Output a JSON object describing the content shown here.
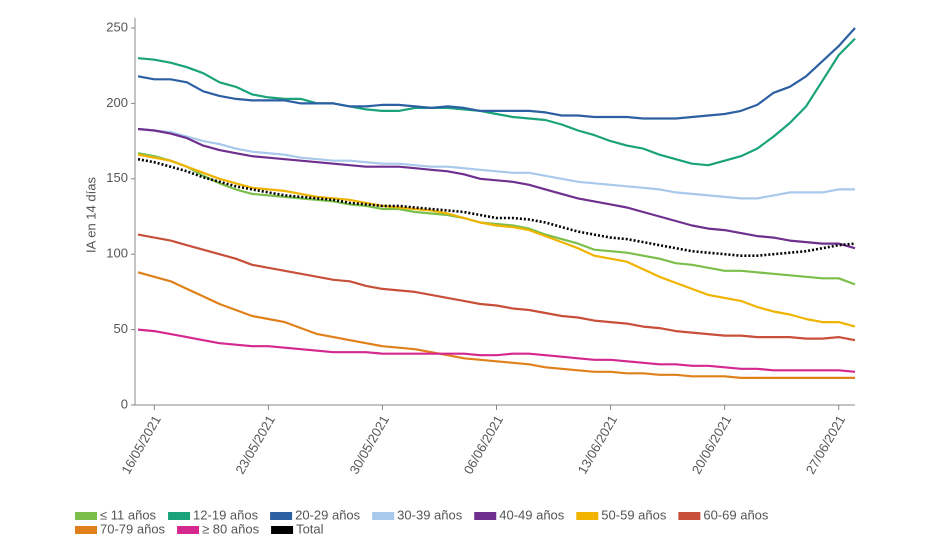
{
  "chart_data": {
    "type": "line",
    "y_label": "IA en 14 días",
    "categories": [
      null,
      "16/05/2021",
      null,
      null,
      null,
      null,
      null,
      null,
      "23/05/2021",
      null,
      null,
      null,
      null,
      null,
      null,
      "30/05/2021",
      null,
      null,
      null,
      null,
      null,
      null,
      "06/06/2021",
      null,
      null,
      null,
      null,
      null,
      null,
      "13/06/2021",
      null,
      null,
      null,
      null,
      null,
      null,
      "20/06/2021",
      null,
      null,
      null,
      null,
      null,
      null,
      "27/06/2021",
      null
    ],
    "ylim": [
      0,
      250
    ],
    "yticks": [
      0,
      50,
      100,
      150,
      200,
      250
    ],
    "grid": false,
    "legend": "bottom",
    "series": [
      {
        "name": "≤ 11 años",
        "color": "#7bbf4a",
        "values": [
          167,
          165,
          162,
          158,
          152,
          147,
          143,
          140,
          139,
          138,
          137,
          136,
          135,
          133,
          132,
          130,
          130,
          128,
          127,
          126,
          124,
          121,
          120,
          119,
          117,
          113,
          110,
          107,
          103,
          102,
          101,
          99,
          97,
          94,
          93,
          91,
          89,
          89,
          88,
          87,
          86,
          85,
          84,
          84,
          80
        ]
      },
      {
        "name": "12-19 años",
        "color": "#1aa37a",
        "values": [
          230,
          229,
          227,
          224,
          220,
          214,
          211,
          206,
          204,
          203,
          203,
          200,
          200,
          198,
          196,
          195,
          195,
          197,
          197,
          197,
          196,
          195,
          193,
          191,
          190,
          189,
          186,
          182,
          179,
          175,
          172,
          170,
          166,
          163,
          160,
          159,
          162,
          165,
          170,
          178,
          187,
          198,
          215,
          232,
          243
        ]
      },
      {
        "name": "20-29 años",
        "color": "#2d5fa3",
        "values": [
          218,
          216,
          216,
          214,
          208,
          205,
          203,
          202,
          202,
          202,
          200,
          200,
          200,
          198,
          198,
          199,
          199,
          198,
          197,
          198,
          197,
          195,
          195,
          195,
          195,
          194,
          192,
          192,
          191,
          191,
          191,
          190,
          190,
          190,
          191,
          192,
          193,
          195,
          199,
          207,
          211,
          218,
          228,
          238,
          250
        ]
      },
      {
        "name": "30-39 años",
        "color": "#a8c8ec",
        "values": [
          183,
          182,
          181,
          178,
          175,
          173,
          170,
          168,
          167,
          166,
          164,
          163,
          162,
          162,
          161,
          160,
          160,
          159,
          158,
          158,
          157,
          156,
          155,
          154,
          154,
          152,
          150,
          148,
          147,
          146,
          145,
          144,
          143,
          141,
          140,
          139,
          138,
          137,
          137,
          139,
          141,
          141,
          141,
          143,
          143
        ]
      },
      {
        "name": "40-49 años",
        "color": "#6e2f8e",
        "values": [
          183,
          182,
          180,
          177,
          172,
          169,
          167,
          165,
          164,
          163,
          162,
          161,
          160,
          159,
          158,
          158,
          158,
          157,
          156,
          155,
          153,
          150,
          149,
          148,
          146,
          143,
          140,
          137,
          135,
          133,
          131,
          128,
          125,
          122,
          119,
          117,
          116,
          114,
          112,
          111,
          109,
          108,
          107,
          107,
          104
        ]
      },
      {
        "name": "50-59 años",
        "color": "#f0b400",
        "values": [
          166,
          164,
          162,
          158,
          154,
          150,
          147,
          144,
          143,
          142,
          140,
          138,
          137,
          136,
          134,
          132,
          131,
          130,
          129,
          127,
          124,
          121,
          119,
          118,
          116,
          112,
          108,
          104,
          99,
          97,
          95,
          90,
          85,
          81,
          77,
          73,
          71,
          69,
          65,
          62,
          60,
          57,
          55,
          55,
          52
        ]
      },
      {
        "name": "60-69 años",
        "color": "#c8503a",
        "values": [
          113,
          111,
          109,
          106,
          103,
          100,
          97,
          93,
          91,
          89,
          87,
          85,
          83,
          82,
          79,
          77,
          76,
          75,
          73,
          71,
          69,
          67,
          66,
          64,
          63,
          61,
          59,
          58,
          56,
          55,
          54,
          52,
          51,
          49,
          48,
          47,
          46,
          46,
          45,
          45,
          45,
          44,
          44,
          45,
          43
        ]
      },
      {
        "name": "70-79 años",
        "color": "#e0801a",
        "values": [
          88,
          85,
          82,
          77,
          72,
          67,
          63,
          59,
          57,
          55,
          51,
          47,
          45,
          43,
          41,
          39,
          38,
          37,
          35,
          33,
          31,
          30,
          29,
          28,
          27,
          25,
          24,
          23,
          22,
          22,
          21,
          21,
          20,
          20,
          19,
          19,
          19,
          18,
          18,
          18,
          18,
          18,
          18,
          18,
          18
        ]
      },
      {
        "name": "≥ 80 años",
        "color": "#d4288f",
        "values": [
          50,
          49,
          47,
          45,
          43,
          41,
          40,
          39,
          39,
          38,
          37,
          36,
          35,
          35,
          35,
          34,
          34,
          34,
          34,
          34,
          34,
          33,
          33,
          34,
          34,
          33,
          32,
          31,
          30,
          30,
          29,
          28,
          27,
          27,
          26,
          26,
          25,
          24,
          24,
          23,
          23,
          23,
          23,
          23,
          22
        ]
      },
      {
        "name": "Total",
        "color": "#000000",
        "dash": "dotted",
        "values": [
          163,
          161,
          158,
          155,
          151,
          148,
          145,
          143,
          141,
          139,
          138,
          137,
          136,
          134,
          133,
          132,
          132,
          131,
          130,
          129,
          128,
          126,
          124,
          124,
          123,
          121,
          118,
          115,
          113,
          111,
          110,
          108,
          106,
          104,
          102,
          101,
          100,
          99,
          99,
          100,
          101,
          102,
          104,
          106,
          107
        ]
      }
    ]
  }
}
